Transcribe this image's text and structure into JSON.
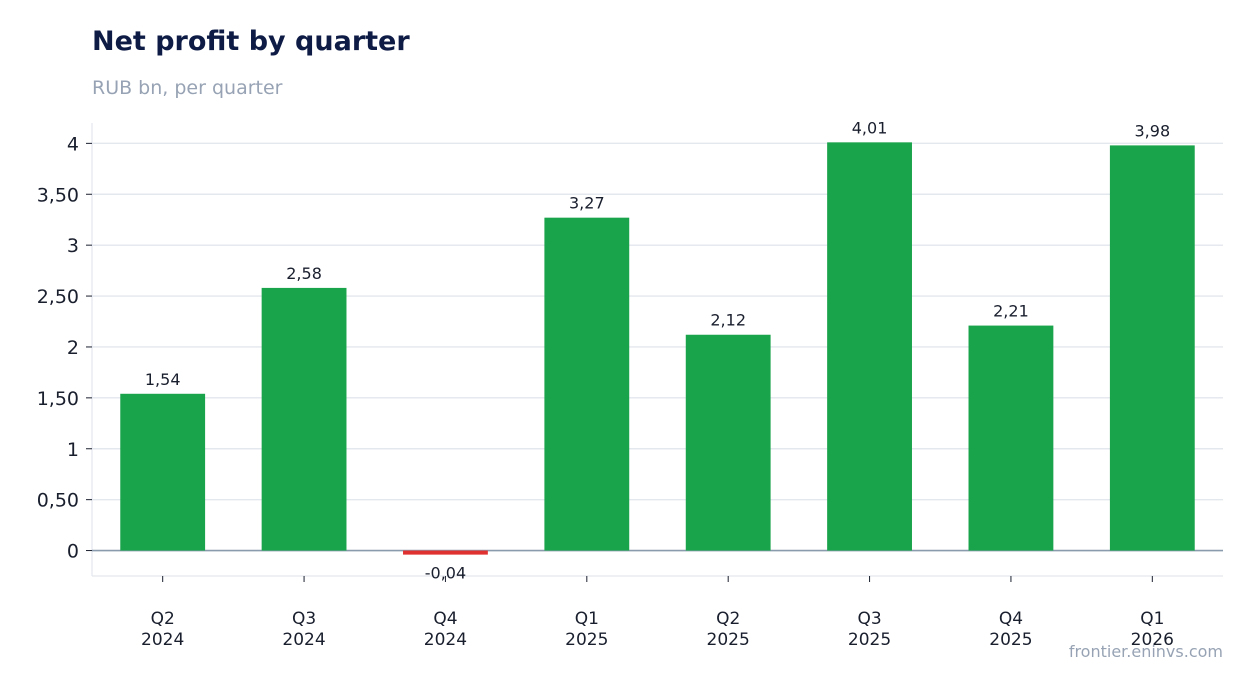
{
  "title": "Net profit by quarter",
  "subtitle": "RUB bn, per quarter",
  "credit": "frontier.eninvs.com",
  "colors": {
    "positive": "#19a34a",
    "negative": "#e03131",
    "grid": "#e3e7ee",
    "zero": "#8a9bad"
  },
  "chart_data": {
    "type": "bar",
    "title": "Net profit by quarter",
    "subtitle": "RUB bn, per quarter",
    "categories": [
      [
        "Q2",
        "2024"
      ],
      [
        "Q3",
        "2024"
      ],
      [
        "Q4",
        "2024"
      ],
      [
        "Q1",
        "2025"
      ],
      [
        "Q2",
        "2025"
      ],
      [
        "Q3",
        "2025"
      ],
      [
        "Q4",
        "2025"
      ],
      [
        "Q1",
        "2026"
      ]
    ],
    "values": [
      1.54,
      2.58,
      -0.04,
      3.27,
      2.12,
      4.01,
      2.21,
      3.98
    ],
    "value_labels": [
      "1,54",
      "2,58",
      "-0,04",
      "3,27",
      "2,12",
      "4,01",
      "2,21",
      "3,98"
    ],
    "yticks": [
      0,
      0.5,
      1,
      1.5,
      2,
      2.5,
      3,
      3.5,
      4
    ],
    "ytick_labels": [
      "0",
      "0,50",
      "1",
      "1,50",
      "2",
      "2,50",
      "3",
      "3,50",
      "4"
    ],
    "ylim": [
      -0.25,
      4.2
    ],
    "grid": true,
    "xlabel": "",
    "ylabel": ""
  }
}
